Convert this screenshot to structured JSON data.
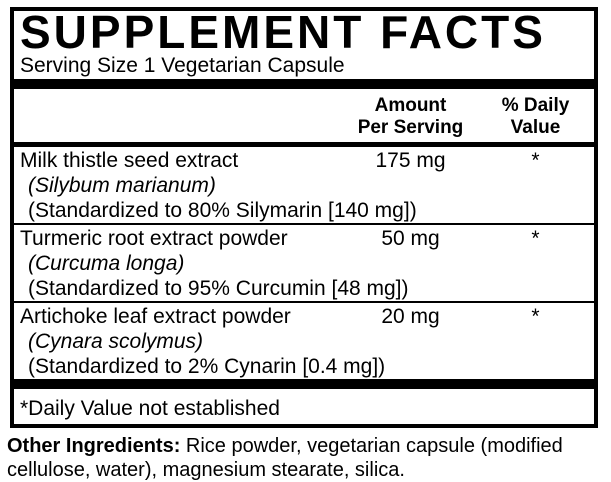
{
  "panel": {
    "title": "SUPPLEMENT FACTS",
    "serving_size": "Serving Size 1 Vegetarian Capsule",
    "header": {
      "amount_line1": "Amount",
      "amount_line2": "Per Serving",
      "daily_value_line1": "% Daily",
      "daily_value_line2": "Value"
    },
    "ingredients": [
      {
        "name": "Milk thistle seed extract",
        "latin_name": "(Silybum marianum)",
        "standardization": "(Standardized to 80% Silymarin [140 mg])",
        "amount": "175 mg",
        "daily_value": "*"
      },
      {
        "name": "Turmeric root extract powder",
        "latin_name": "(Curcuma longa)",
        "standardization": "(Standardized to 95% Curcumin [48 mg])",
        "amount": "50 mg",
        "daily_value": "*"
      },
      {
        "name": "Artichoke leaf extract powder",
        "latin_name": "(Cynara scolymus)",
        "standardization": "(Standardized to 2% Cynarin [0.4 mg])",
        "amount": "20 mg",
        "daily_value": "*"
      }
    ],
    "footnote": "*Daily Value not established"
  },
  "other_ingredients": {
    "label": "Other Ingredients:",
    "text": " Rice powder, vegetarian capsule (modified cellulose, water), magnesium stearate, silica."
  },
  "colors": {
    "ink": "#000000",
    "background": "#ffffff"
  }
}
